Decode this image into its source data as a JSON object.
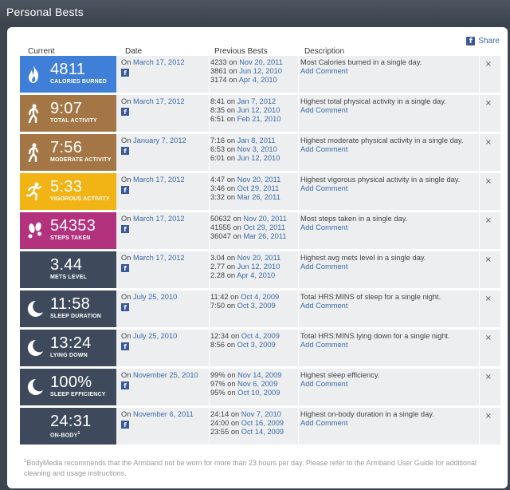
{
  "window": {
    "title": "Personal Bests"
  },
  "share": {
    "label": "Share",
    "icon": "facebook-icon"
  },
  "columns": {
    "current": "Current",
    "date": "Date",
    "previous": "Previous Bests",
    "description": "Description"
  },
  "on_prefix": "On",
  "on_word": "on",
  "add_comment": "Add Comment",
  "close_glyph": "×",
  "rows": [
    {
      "value": "4811",
      "label": "CALORIES BURNED",
      "sup": "",
      "icon": "flame-icon",
      "color": "#3f7fd8",
      "date": "March 17, 2012",
      "prev": [
        {
          "v": "4233",
          "d": "Nov 20, 2011"
        },
        {
          "v": "3861",
          "d": "Jun 12, 2010"
        },
        {
          "v": "3174",
          "d": "Apr 4, 2010"
        }
      ],
      "desc": "Most Calories burned in a single day."
    },
    {
      "value": "9:07",
      "label": "TOTAL ACTIVITY",
      "sup": "",
      "icon": "walking-icon",
      "color": "#a57645",
      "date": "March 17, 2012",
      "prev": [
        {
          "v": "8:41",
          "d": "Jan 7, 2012"
        },
        {
          "v": "8:35",
          "d": "Jun 12, 2010"
        },
        {
          "v": "6:51",
          "d": "Feb 21, 2010"
        }
      ],
      "desc": "Highest total physical activity in a single day."
    },
    {
      "value": "7:56",
      "label": "MODERATE ACTIVITY",
      "sup": "",
      "icon": "walking-icon",
      "color": "#a57645",
      "date": "January 7, 2012",
      "prev": [
        {
          "v": "7:16",
          "d": "Jan 8, 2011"
        },
        {
          "v": "6:53",
          "d": "Nov 3, 2010"
        },
        {
          "v": "6:01",
          "d": "Jun 12, 2010"
        }
      ],
      "desc": "Highest moderate physical activity in a single day."
    },
    {
      "value": "5:33",
      "label": "VIGOROUS ACTIVITY",
      "sup": "",
      "icon": "running-icon",
      "color": "#f2b415",
      "date": "March 17, 2012",
      "prev": [
        {
          "v": "4:47",
          "d": "Nov 20, 2011"
        },
        {
          "v": "3:46",
          "d": "Oct 29, 2011"
        },
        {
          "v": "3:32",
          "d": "Mar 26, 2011"
        }
      ],
      "desc": "Highest vigorous physical activity in a single day."
    },
    {
      "value": "54353",
      "label": "STEPS TAKEN",
      "sup": "",
      "icon": "footprints-icon",
      "color": "#b2327d",
      "date": "March 17, 2012",
      "prev": [
        {
          "v": "50632",
          "d": "Nov 20, 2011"
        },
        {
          "v": "41555",
          "d": "Oct 29, 2011"
        },
        {
          "v": "36047",
          "d": "Mar 26, 2011"
        }
      ],
      "desc": "Most steps taken in a single day."
    },
    {
      "value": "3.44",
      "label": "METS LEVEL",
      "sup": "",
      "icon": "",
      "color": "#3e4a5c",
      "date": "March 17, 2012",
      "prev": [
        {
          "v": "3.04",
          "d": "Nov 20, 2011"
        },
        {
          "v": "2.77",
          "d": "Jun 12, 2010"
        },
        {
          "v": "2.28",
          "d": "Apr 4, 2010"
        }
      ],
      "desc": "Highest avg mets level in a single day."
    },
    {
      "value": "11:58",
      "label": "SLEEP DURATION",
      "sup": "",
      "icon": "moon-icon",
      "color": "#3e4a5c",
      "date": "July 25, 2010",
      "prev": [
        {
          "v": "11:42",
          "d": "Oct 4, 2009"
        },
        {
          "v": "7:50",
          "d": "Oct 3, 2009"
        }
      ],
      "desc": "Total HRS:MINS of sleep for a single night."
    },
    {
      "value": "13:24",
      "label": "LYING DOWN",
      "sup": "",
      "icon": "moon-icon",
      "color": "#3e4a5c",
      "date": "July 25, 2010",
      "prev": [
        {
          "v": "12:34",
          "d": "Oct 4, 2009"
        },
        {
          "v": "8:56",
          "d": "Oct 3, 2009"
        }
      ],
      "desc": "Total HRS:MINS lying down for a single night."
    },
    {
      "value": "100%",
      "label": "SLEEP EFFICIENCY",
      "sup": "",
      "icon": "moon-icon",
      "color": "#3e4a5c",
      "date": "November 25, 2010",
      "prev": [
        {
          "v": "99%",
          "d": "Nov 14, 2009"
        },
        {
          "v": "97%",
          "d": "Nov 6, 2009"
        },
        {
          "v": "95%",
          "d": "Oct 10, 2009"
        }
      ],
      "desc": "Highest sleep efficiency."
    },
    {
      "value": "24:31",
      "label": "ON-BODY",
      "sup": "1",
      "icon": "",
      "color": "#3e4a5c",
      "date": "November 6, 2011",
      "prev": [
        {
          "v": "24:14",
          "d": "Nov 7, 2010"
        },
        {
          "v": "24:00",
          "d": "Oct 16, 2009"
        },
        {
          "v": "23:55",
          "d": "Oct 14, 2009"
        }
      ],
      "desc": "Highest on-body duration in a single day."
    }
  ],
  "footnote": {
    "marker": "1",
    "text": "BodyMedia recommends that the Armband not be worn for more than 23 hours per day. Please refer to the Armband User Guide for additional cleaning and usage instructions."
  }
}
